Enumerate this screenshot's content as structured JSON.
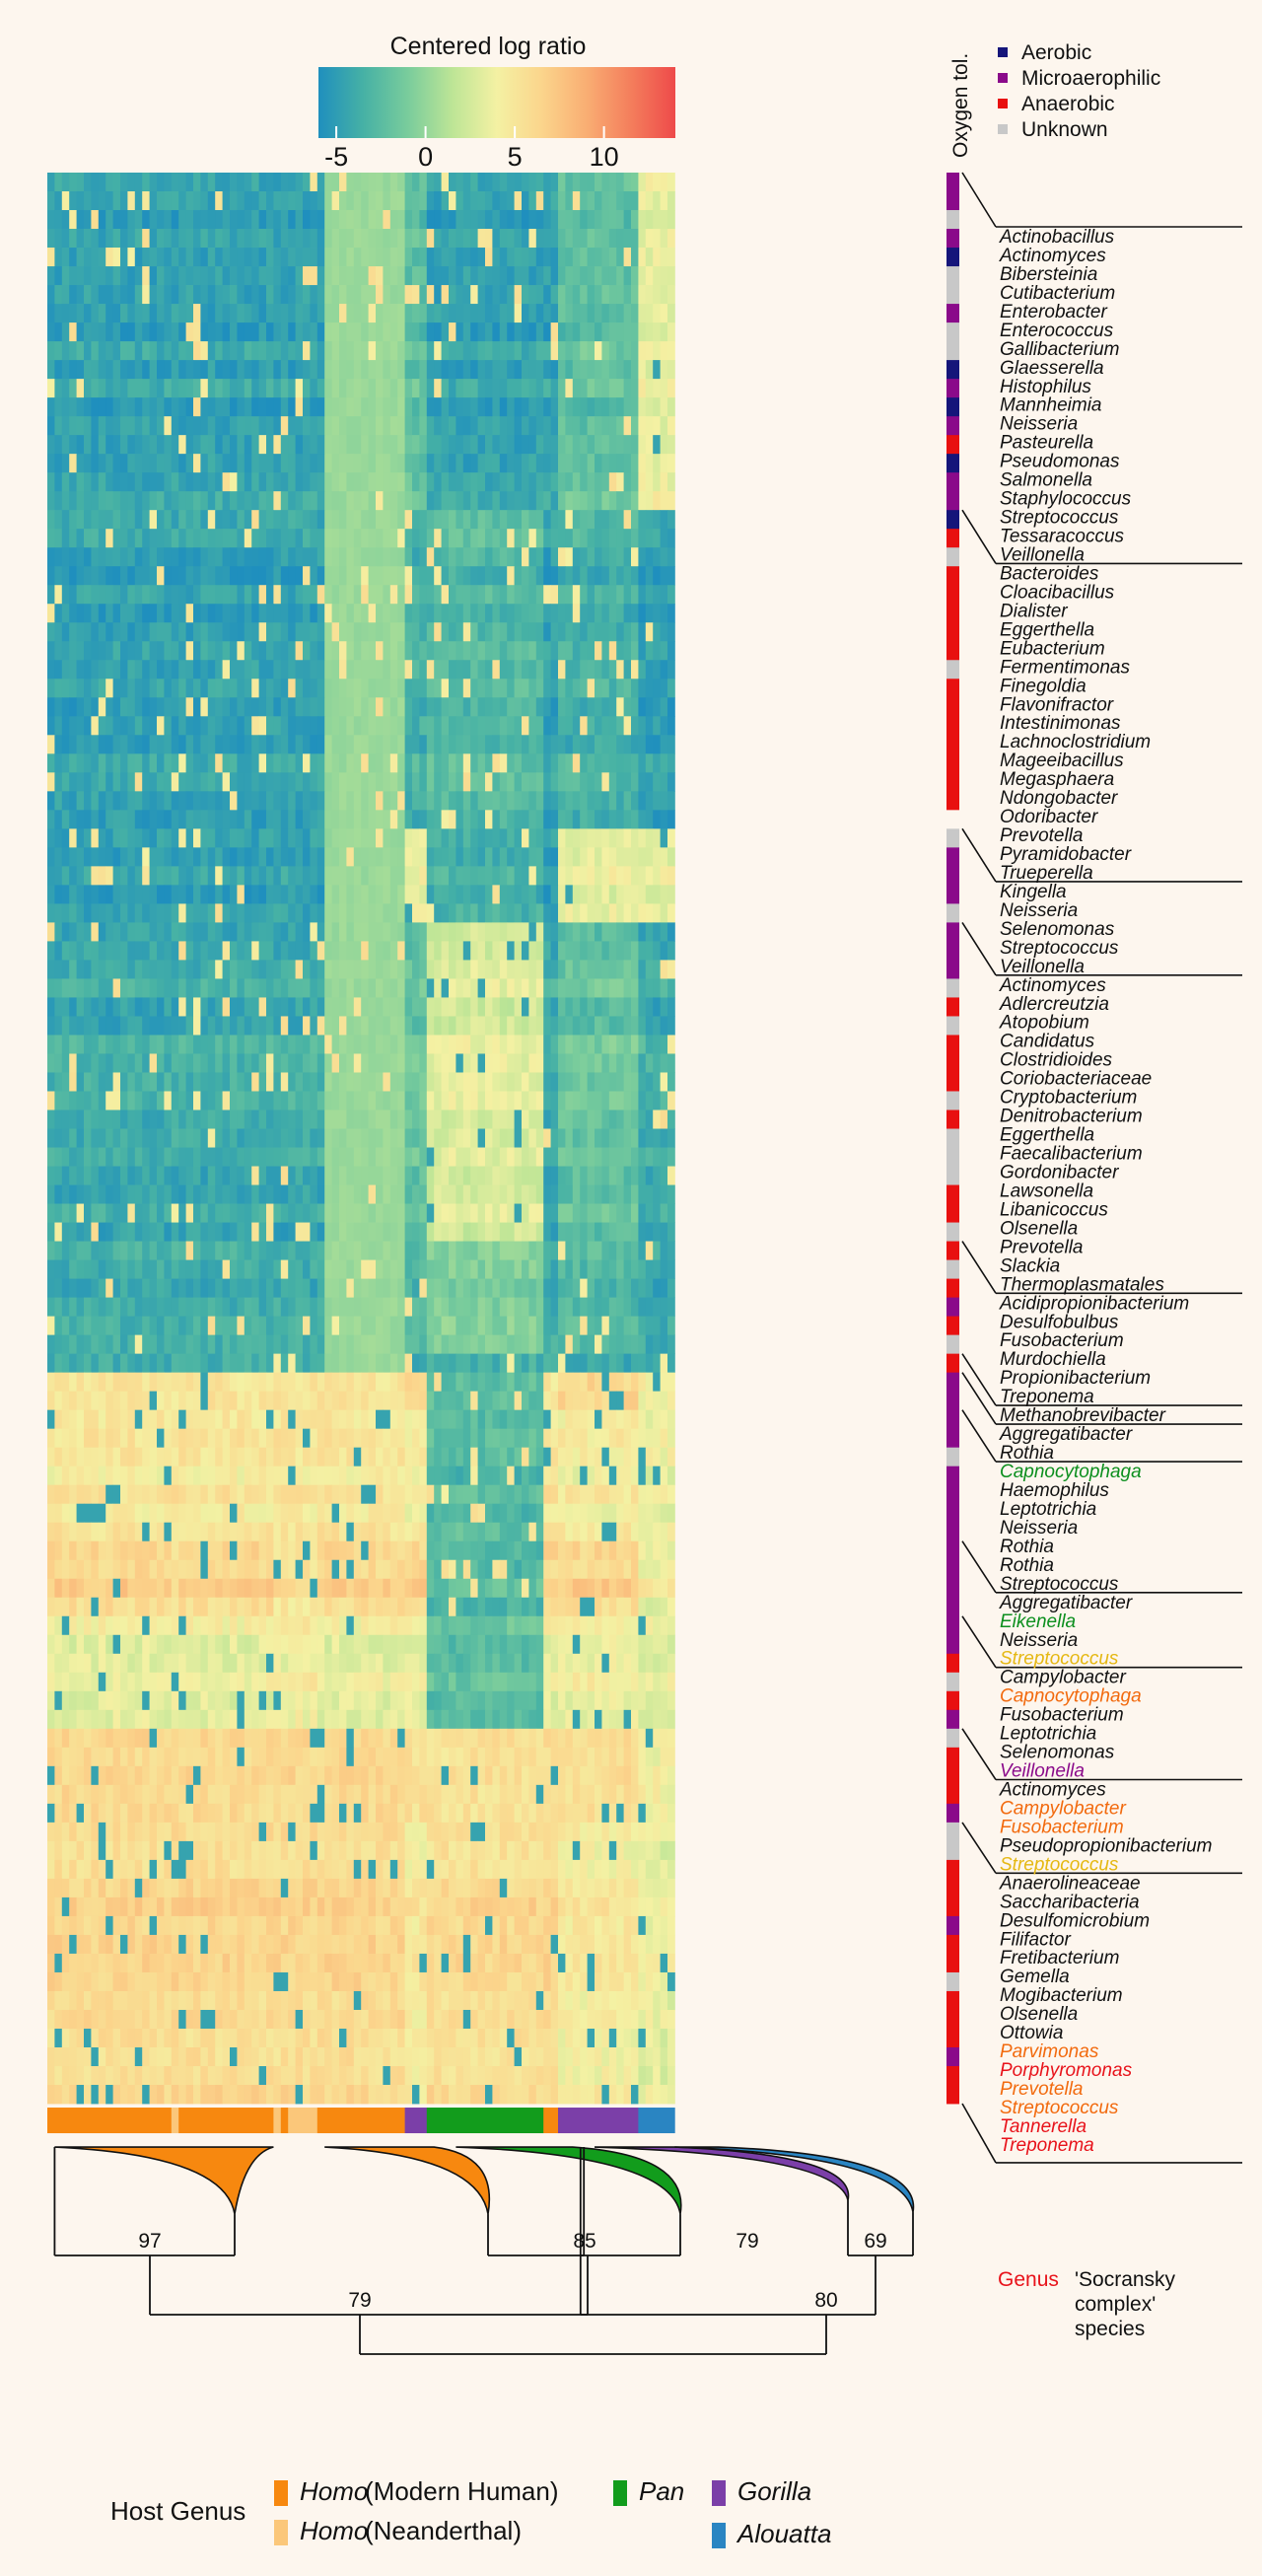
{
  "chart_data": {
    "type": "heatmap",
    "colorbar": {
      "title": "Centered log ratio",
      "ticks": [
        -5,
        0,
        5,
        10
      ],
      "colors": [
        "#1f8fbe",
        "#46b1a5",
        "#79cc9c",
        "#bde596",
        "#f4f1a3",
        "#fbd58c",
        "#f9ae73",
        "#f47e5c",
        "#ee4a4a"
      ]
    },
    "oxygen_tolerance": {
      "title": "Oxygen tol.",
      "legend": [
        {
          "label": "Aerobic",
          "color": "#15157a"
        },
        {
          "label": "Microaerophilic",
          "color": "#8a0a8a"
        },
        {
          "label": "Anaerobic",
          "color": "#e81010"
        },
        {
          "label": "Unknown",
          "color": "#c8c8c8"
        }
      ]
    },
    "clusters": [
      {
        "rows": [
          {
            "name": "Actinobacillus",
            "o2": "M"
          },
          {
            "name": "Actinomyces",
            "o2": "M"
          },
          {
            "name": "Bibersteinia",
            "o2": "U"
          },
          {
            "name": "Cutibacterium",
            "o2": "M"
          },
          {
            "name": "Enterobacter",
            "o2": "A"
          },
          {
            "name": "Enterococcus",
            "o2": "U"
          },
          {
            "name": "Gallibacterium",
            "o2": "U"
          },
          {
            "name": "Glaesserella",
            "o2": "M"
          },
          {
            "name": "Histophilus",
            "o2": "U"
          },
          {
            "name": "Mannheimia",
            "o2": "U"
          },
          {
            "name": "Neisseria",
            "o2": "A"
          },
          {
            "name": "Pasteurella",
            "o2": "M"
          },
          {
            "name": "Pseudomonas",
            "o2": "A"
          },
          {
            "name": "Salmonella",
            "o2": "M"
          },
          {
            "name": "Staphylococcus",
            "o2": "N"
          },
          {
            "name": "Streptococcus",
            "o2": "A"
          },
          {
            "name": "Tessaracoccus",
            "o2": "M"
          },
          {
            "name": "Veillonella",
            "o2": "M"
          }
        ]
      },
      {
        "rows": [
          {
            "name": "Bacteroides",
            "o2": "A"
          },
          {
            "name": "Cloacibacillus",
            "o2": "N"
          },
          {
            "name": "Dialister",
            "o2": "U"
          },
          {
            "name": "Eggerthella",
            "o2": "N"
          },
          {
            "name": "Eubacterium",
            "o2": "N"
          },
          {
            "name": "Fermentimonas",
            "o2": "N"
          },
          {
            "name": "Finegoldia",
            "o2": "N"
          },
          {
            "name": "Flavonifractor",
            "o2": "N"
          },
          {
            "name": "Intestinimonas",
            "o2": "U"
          },
          {
            "name": "Lachnoclostridium",
            "o2": "N"
          },
          {
            "name": "Mageeibacillus",
            "o2": "N"
          },
          {
            "name": "Megasphaera",
            "o2": "N"
          },
          {
            "name": "Ndongobacter",
            "o2": "N"
          },
          {
            "name": "Odoribacter",
            "o2": "N"
          },
          {
            "name": "Prevotella",
            "o2": "N"
          },
          {
            "name": "Pyramidobacter",
            "o2": "N"
          },
          {
            "name": "Trueperella",
            "o2": "B"
          }
        ]
      },
      {
        "rows": [
          {
            "name": "Kingella",
            "o2": "U"
          },
          {
            "name": "Neisseria",
            "o2": "M"
          },
          {
            "name": "Selenomonas",
            "o2": "M"
          },
          {
            "name": "Streptococcus",
            "o2": "M"
          },
          {
            "name": "Veillonella",
            "o2": "U"
          }
        ]
      },
      {
        "rows": [
          {
            "name": "Actinomyces",
            "o2": "M"
          },
          {
            "name": "Adlercreutzia",
            "o2": "M"
          },
          {
            "name": "Atopobium",
            "o2": "M"
          },
          {
            "name": "Candidatus",
            "o2": "U"
          },
          {
            "name": "Clostridioides",
            "o2": "N"
          },
          {
            "name": "Coriobacteriaceae",
            "o2": "U"
          },
          {
            "name": "Cryptobacterium",
            "o2": "N"
          },
          {
            "name": "Denitrobacterium",
            "o2": "N"
          },
          {
            "name": "Eggerthella",
            "o2": "N"
          },
          {
            "name": "Faecalibacterium",
            "o2": "U"
          },
          {
            "name": "Gordonibacter",
            "o2": "N"
          },
          {
            "name": "Lawsonella",
            "o2": "U"
          },
          {
            "name": "Libanicoccus",
            "o2": "U"
          },
          {
            "name": "Olsenella",
            "o2": "U"
          },
          {
            "name": "Prevotella",
            "o2": "N"
          },
          {
            "name": "Slackia",
            "o2": "N"
          },
          {
            "name": "Thermoplasmatales",
            "o2": "U"
          }
        ]
      },
      {
        "rows": [
          {
            "name": "Acidipropionibacterium",
            "o2": "N"
          },
          {
            "name": "Desulfobulbus",
            "o2": "U"
          },
          {
            "name": "Fusobacterium",
            "o2": "N"
          },
          {
            "name": "Murdochiella",
            "o2": "M"
          },
          {
            "name": "Propionibacterium",
            "o2": "N"
          },
          {
            "name": "Treponema",
            "o2": "U"
          }
        ]
      },
      {
        "rows": [
          {
            "name": "Methanobrevibacter",
            "o2": "N"
          }
        ]
      },
      {
        "rows": [
          {
            "name": "Aggregatibacter",
            "o2": "M"
          },
          {
            "name": "Rothia",
            "o2": "M"
          }
        ]
      },
      {
        "rows": [
          {
            "name": "Capnocytophaga",
            "o2": "M",
            "socransky": "green"
          },
          {
            "name": "Haemophilus",
            "o2": "M"
          },
          {
            "name": "Leptotrichia",
            "o2": "U"
          },
          {
            "name": "Neisseria",
            "o2": "M"
          },
          {
            "name": "Rothia",
            "o2": "M"
          },
          {
            "name": "Rothia",
            "o2": "M"
          },
          {
            "name": "Streptococcus",
            "o2": "M"
          }
        ]
      },
      {
        "rows": [
          {
            "name": "Aggregatibacter",
            "o2": "M"
          },
          {
            "name": "Eikenella",
            "o2": "M",
            "socransky": "green"
          },
          {
            "name": "Neisseria",
            "o2": "M"
          },
          {
            "name": "Streptococcus",
            "o2": "M",
            "socransky": "yellow"
          }
        ]
      },
      {
        "rows": [
          {
            "name": "Campylobacter",
            "o2": "M"
          },
          {
            "name": "Capnocytophaga",
            "o2": "M",
            "socransky": "orange"
          },
          {
            "name": "Fusobacterium",
            "o2": "N"
          },
          {
            "name": "Leptotrichia",
            "o2": "U"
          },
          {
            "name": "Selenomonas",
            "o2": "N"
          },
          {
            "name": "Veillonella",
            "o2": "M",
            "socransky": "purple"
          }
        ]
      },
      {
        "rows": [
          {
            "name": "Actinomyces",
            "o2": "U"
          },
          {
            "name": "Campylobacter",
            "o2": "N",
            "socransky": "orange"
          },
          {
            "name": "Fusobacterium",
            "o2": "N",
            "socransky": "orange"
          },
          {
            "name": "Pseudopropionibacterium",
            "o2": "N"
          },
          {
            "name": "Streptococcus",
            "o2": "M",
            "socransky": "yellow"
          }
        ]
      },
      {
        "rows": [
          {
            "name": "Anaerolineaceae",
            "o2": "U"
          },
          {
            "name": "Saccharibacteria",
            "o2": "U"
          },
          {
            "name": "Desulfomicrobium",
            "o2": "N"
          },
          {
            "name": "Filifactor",
            "o2": "N"
          },
          {
            "name": "Fretibacterium",
            "o2": "N"
          },
          {
            "name": "Gemella",
            "o2": "M"
          },
          {
            "name": "Mogibacterium",
            "o2": "N"
          },
          {
            "name": "Olsenella",
            "o2": "N"
          },
          {
            "name": "Ottowia",
            "o2": "U"
          },
          {
            "name": "Parvimonas",
            "o2": "N",
            "socransky": "orange"
          },
          {
            "name": "Porphyromonas",
            "o2": "N",
            "socransky": "red"
          },
          {
            "name": "Prevotella",
            "o2": "N",
            "socransky": "orange"
          },
          {
            "name": "Streptococcus",
            "o2": "M",
            "socransky": "orange"
          },
          {
            "name": "Tannerella",
            "o2": "N",
            "socransky": "red"
          },
          {
            "name": "Treponema",
            "o2": "N",
            "socransky": "red"
          }
        ]
      }
    ],
    "socransky_colors": {
      "red": "#e8131b",
      "orange": "#f26a0e",
      "yellow": "#e5b813",
      "green": "#0c8f1e",
      "purple": "#8a0a8a"
    },
    "host_bar": [
      {
        "host": "homo",
        "n": 17
      },
      {
        "host": "neander",
        "n": 1
      },
      {
        "host": "homo",
        "n": 13
      },
      {
        "host": "neander",
        "n": 1
      },
      {
        "host": "homo",
        "n": 1
      },
      {
        "host": "neander",
        "n": 4
      },
      {
        "host": "homo",
        "n": 12
      },
      {
        "host": "gorilla",
        "n": 3
      },
      {
        "host": "pan",
        "n": 16
      },
      {
        "host": "homo",
        "n": 2
      },
      {
        "host": "gorilla",
        "n": 11
      },
      {
        "host": "alouatta",
        "n": 5
      }
    ],
    "host_colors": {
      "homo": "#f7880f",
      "neander": "#fbc77a",
      "pan": "#129c1c",
      "gorilla": "#7b3fa8",
      "alouatta": "#2a85c2"
    },
    "tree_node_labels": [
      "97",
      "85",
      "79",
      "79",
      "80",
      "69"
    ],
    "legend_bottom": {
      "title": "Host Genus",
      "items": [
        {
          "genus": "Homo",
          "note": "(Modern Human)",
          "host": "homo"
        },
        {
          "genus": "Homo",
          "note": "(Neanderthal)",
          "host": "neander"
        },
        {
          "genus": "Pan",
          "note": "",
          "host": "pan"
        },
        {
          "genus": "Gorilla",
          "note": "",
          "host": "gorilla"
        },
        {
          "genus": "Alouatta",
          "note": "",
          "host": "alouatta"
        }
      ]
    },
    "genus_key": {
      "label": "Genus",
      "line1": "'Socransky",
      "line2": "complex'",
      "line3": "species"
    }
  }
}
